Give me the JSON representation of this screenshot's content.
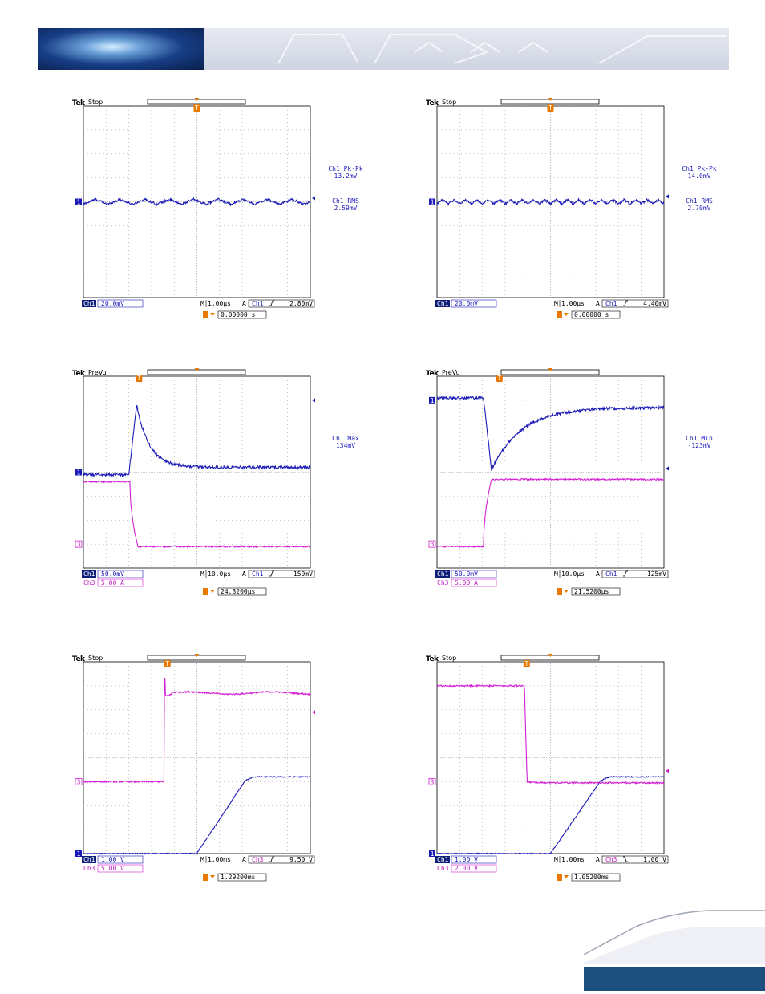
{
  "colors": {
    "ch1": "#1a1ab8",
    "ch3": "#d21ed2",
    "trigger": "#e87800",
    "grid": "#9a9a9a",
    "footer": "#1d4f7e"
  },
  "scopes": [
    {
      "brand": "Tek",
      "mode": "Stop",
      "meas": [
        [
          "Ch1 Pk-Pk",
          "13.2mV"
        ],
        [
          "Ch1 RMS",
          "2.59mV"
        ]
      ],
      "ch1_scale": "20.0mV",
      "ch3_scale": "",
      "timebase": "1.00µs",
      "trig_src": "Ch1",
      "trig_slope": "rise",
      "trig_level": "2.80mV",
      "trig_time": "0.00000 s",
      "ch1_marker_div": 4,
      "ch3_marker_div": null,
      "trig_level_div": 4.15,
      "trig_pos_div": 5.0,
      "top_trig_div": 5.0,
      "chart_data": {
        "type": "line",
        "x_range_div": [
          0,
          10
        ],
        "y_range_div": [
          0,
          8
        ],
        "series": [
          {
            "channel": "Ch1",
            "kind": "ripple",
            "base_div": 4.0,
            "amp_div": 0.13,
            "period_div": 1.08
          }
        ]
      }
    },
    {
      "brand": "Tek",
      "mode": "Stop",
      "meas": [
        [
          "Ch1 Pk-Pk",
          "14.0mV"
        ],
        [
          "Ch1 RMS",
          "2.70mV"
        ]
      ],
      "ch1_scale": "20.0mV",
      "ch3_scale": "",
      "timebase": "1.00µs",
      "trig_src": "Ch1",
      "trig_slope": "rise",
      "trig_level": "4.40mV",
      "trig_time": "0.00000 s",
      "ch1_marker_div": 4,
      "ch3_marker_div": null,
      "trig_level_div": 4.22,
      "trig_pos_div": 5.0,
      "top_trig_div": 5.0,
      "chart_data": {
        "type": "line",
        "x_range_div": [
          0,
          10
        ],
        "y_range_div": [
          0,
          8
        ],
        "series": [
          {
            "channel": "Ch1",
            "kind": "ripple",
            "base_div": 4.0,
            "amp_div": 0.11,
            "period_div": 0.5
          }
        ]
      }
    },
    {
      "brand": "Tek",
      "mode": "PreVu",
      "meas": [
        [
          "Ch1 Max",
          "134mV"
        ]
      ],
      "ch1_scale": "50.0mV",
      "ch3_scale": "5.00 A",
      "timebase": "10.0µs",
      "trig_src": "Ch1",
      "trig_slope": "rise",
      "trig_level": "150mV",
      "trig_time": "24.3200µs",
      "ch1_marker_div": 4,
      "ch3_marker_div": 1,
      "trig_level_div": 7.0,
      "trig_pos_div": 2.45,
      "top_trig_div": 5.0,
      "chart_data": {
        "type": "line",
        "x_range_div": [
          0,
          10
        ],
        "y_range_div": [
          0,
          8
        ],
        "series": [
          {
            "channel": "Ch1",
            "kind": "transient",
            "pre_div": 3.9,
            "edge_div": 2.0,
            "peak_div": 6.8,
            "final_div": 4.2,
            "tau_div": 0.55,
            "noise_div": 0.06
          },
          {
            "channel": "Ch3",
            "kind": "step",
            "pre_div": 3.6,
            "post_div": 0.9,
            "edge_div": 2.05,
            "rise_div": 0.35,
            "noise_div": 0.03
          }
        ]
      }
    },
    {
      "brand": "Tek",
      "mode": "PreVu",
      "meas": [
        [
          "Ch1 Min",
          "-123mV"
        ]
      ],
      "ch1_scale": "50.0mV",
      "ch3_scale": "5.00 A",
      "timebase": "10.0µs",
      "trig_src": "Ch1",
      "trig_slope": "rise",
      "trig_level": "-125mV",
      "trig_time": "21.5200µs",
      "ch1_marker_div": 7,
      "ch3_marker_div": 1,
      "trig_level_div": 4.15,
      "trig_pos_div": 2.75,
      "top_trig_div": 5.0,
      "chart_data": {
        "type": "line",
        "x_range_div": [
          0,
          10
        ],
        "y_range_div": [
          0,
          8
        ],
        "series": [
          {
            "channel": "Ch1",
            "kind": "transient",
            "pre_div": 7.1,
            "edge_div": 2.05,
            "peak_div": 4.1,
            "final_div": 6.7,
            "tau_div": 1.3,
            "noise_div": 0.06
          },
          {
            "channel": "Ch3",
            "kind": "step",
            "pre_div": 0.9,
            "post_div": 3.7,
            "edge_div": 2.05,
            "rise_div": 0.35,
            "noise_div": 0.03
          }
        ]
      }
    },
    {
      "brand": "Tek",
      "mode": "Stop",
      "meas": [],
      "ch1_scale": "1.00 V",
      "ch3_scale": "5.00 V",
      "timebase": "1.00ms",
      "trig_src": "Ch3",
      "trig_slope": "rise",
      "trig_level": "9.50 V",
      "trig_time": "1.29200ms",
      "ch1_marker_div": 0,
      "ch3_marker_div": 3,
      "trig_level_div": 5.9,
      "trig_pos_div": 3.7,
      "top_trig_div": 5.0,
      "chart_data": {
        "type": "line",
        "x_range_div": [
          0,
          10
        ],
        "y_range_div": [
          0,
          8
        ],
        "series": [
          {
            "channel": "Ch1",
            "kind": "ramp",
            "pre_div": 0.0,
            "start_div": 5.0,
            "end_div": 7.5,
            "final_div": 3.2,
            "noise_div": 0.02
          },
          {
            "channel": "Ch3",
            "kind": "stepover",
            "pre_div": 3.0,
            "post_div": 6.7,
            "edge_div": 3.55,
            "spike_div": 7.3,
            "noise_div": 0.03
          }
        ]
      }
    },
    {
      "brand": "Tek",
      "mode": "Stop",
      "meas": [],
      "ch1_scale": "1.00 V",
      "ch3_scale": "2.00 V",
      "timebase": "1.00ms",
      "trig_src": "Ch3",
      "trig_slope": "fall",
      "trig_level": "1.00 V",
      "trig_time": "1.05200ms",
      "ch1_marker_div": 0,
      "ch3_marker_div": 3,
      "trig_level_div": 3.45,
      "trig_pos_div": 3.95,
      "top_trig_div": 5.0,
      "chart_data": {
        "type": "line",
        "x_range_div": [
          0,
          10
        ],
        "y_range_div": [
          0,
          8
        ],
        "series": [
          {
            "channel": "Ch1",
            "kind": "ramp",
            "pre_div": 0.0,
            "start_div": 5.0,
            "end_div": 7.6,
            "final_div": 3.2,
            "noise_div": 0.02
          },
          {
            "channel": "Ch3",
            "kind": "stepdown",
            "pre_div": 7.0,
            "post_div": 2.95,
            "edge_div": 3.85,
            "noise_div": 0.03
          }
        ]
      }
    }
  ]
}
